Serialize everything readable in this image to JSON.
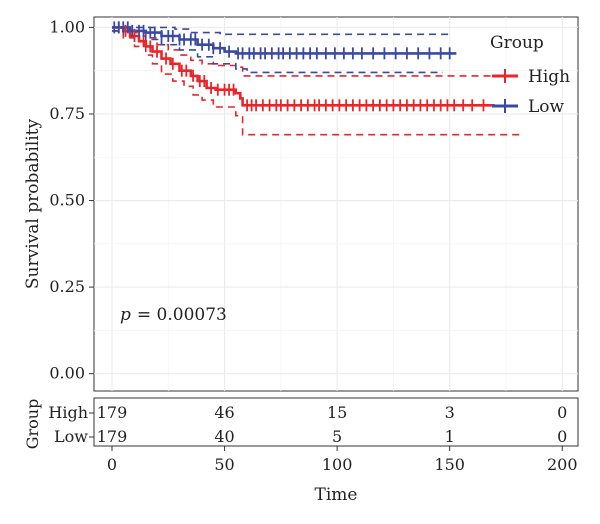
{
  "chart_data": {
    "type": "line",
    "subtype": "kaplan-meier",
    "xlabel": "Time",
    "ylabel": "Survival probability",
    "xlim": [
      -8,
      207
    ],
    "ylim": [
      -0.05,
      1.03
    ],
    "xticks": [
      "0",
      "50",
      "100",
      "150",
      "200"
    ],
    "xtick_values": [
      0,
      50,
      100,
      150,
      200
    ],
    "yticks": [
      "0.00",
      "0.25",
      "0.50",
      "0.75",
      "1.00"
    ],
    "ytick_values": [
      0,
      0.25,
      0.5,
      0.75,
      1.0
    ],
    "grid": true,
    "legend_title": "Group",
    "legend_position": "top-right",
    "pvalue_prefix": "p",
    "pvalue_text": "= 0.00073",
    "series": [
      {
        "name": "High",
        "color": "#e8262a",
        "steps": [
          [
            0,
            1.0
          ],
          [
            5,
            0.99
          ],
          [
            8,
            0.975
          ],
          [
            12,
            0.96
          ],
          [
            15,
            0.945
          ],
          [
            18,
            0.93
          ],
          [
            22,
            0.91
          ],
          [
            26,
            0.895
          ],
          [
            30,
            0.875
          ],
          [
            35,
            0.86
          ],
          [
            38,
            0.845
          ],
          [
            42,
            0.825
          ],
          [
            46,
            0.82
          ],
          [
            55,
            0.81
          ],
          [
            57,
            0.795
          ],
          [
            58,
            0.775
          ],
          [
            170,
            0.775
          ]
        ],
        "ci_upper": [
          [
            0,
            1.0
          ],
          [
            5,
            1.0
          ],
          [
            10,
            0.985
          ],
          [
            15,
            0.97
          ],
          [
            20,
            0.95
          ],
          [
            25,
            0.935
          ],
          [
            30,
            0.92
          ],
          [
            35,
            0.905
          ],
          [
            40,
            0.895
          ],
          [
            46,
            0.89
          ],
          [
            55,
            0.885
          ],
          [
            58,
            0.86
          ],
          [
            170,
            0.86
          ]
        ],
        "ci_lower": [
          [
            0,
            0.99
          ],
          [
            5,
            0.97
          ],
          [
            10,
            0.945
          ],
          [
            15,
            0.92
          ],
          [
            18,
            0.895
          ],
          [
            22,
            0.865
          ],
          [
            27,
            0.845
          ],
          [
            32,
            0.83
          ],
          [
            36,
            0.805
          ],
          [
            40,
            0.79
          ],
          [
            45,
            0.77
          ],
          [
            55,
            0.745
          ],
          [
            58,
            0.69
          ],
          [
            182,
            0.69
          ]
        ],
        "censor_x": [
          3,
          6,
          10,
          14,
          17,
          20,
          24,
          27,
          31,
          33,
          36,
          39,
          41,
          44,
          47,
          50,
          52,
          54,
          60,
          62,
          64,
          67,
          70,
          73,
          75,
          78,
          81,
          84,
          87,
          90,
          92,
          95,
          98,
          101,
          104,
          107,
          110,
          113,
          116,
          119,
          122,
          125,
          128,
          131,
          134,
          137,
          140,
          143,
          146,
          149,
          152,
          156,
          160,
          165
        ]
      },
      {
        "name": "Low",
        "color": "#3a4aa3",
        "steps": [
          [
            0,
            1.0
          ],
          [
            8,
            0.99
          ],
          [
            15,
            0.985
          ],
          [
            22,
            0.975
          ],
          [
            30,
            0.965
          ],
          [
            38,
            0.95
          ],
          [
            45,
            0.94
          ],
          [
            50,
            0.93
          ],
          [
            55,
            0.925
          ],
          [
            153,
            0.925
          ]
        ],
        "ci_upper": [
          [
            0,
            1.0
          ],
          [
            20,
            1.0
          ],
          [
            28,
            0.995
          ],
          [
            35,
            0.985
          ],
          [
            48,
            0.98
          ],
          [
            150,
            0.98
          ]
        ],
        "ci_lower": [
          [
            0,
            0.99
          ],
          [
            8,
            0.975
          ],
          [
            15,
            0.965
          ],
          [
            22,
            0.95
          ],
          [
            30,
            0.935
          ],
          [
            38,
            0.915
          ],
          [
            45,
            0.895
          ],
          [
            55,
            0.88
          ],
          [
            60,
            0.87
          ],
          [
            147,
            0.87
          ]
        ],
        "censor_x": [
          1,
          3,
          5,
          7,
          9,
          12,
          14,
          17,
          19,
          22,
          25,
          27,
          30,
          32,
          35,
          37,
          40,
          43,
          45,
          48,
          52,
          56,
          58,
          61,
          63,
          66,
          68,
          71,
          74,
          76,
          79,
          82,
          85,
          88,
          91,
          95,
          99,
          103,
          107,
          111,
          116,
          121,
          126,
          131,
          136,
          141,
          146,
          150
        ]
      }
    ],
    "risk_table": {
      "title": "Group",
      "time_points": [
        0,
        50,
        100,
        150,
        200
      ],
      "rows": [
        {
          "name": "High",
          "values": [
            "179",
            "46",
            "15",
            "3",
            "0"
          ]
        },
        {
          "name": "Low",
          "values": [
            "179",
            "40",
            "5",
            "1",
            "0"
          ]
        }
      ]
    }
  }
}
